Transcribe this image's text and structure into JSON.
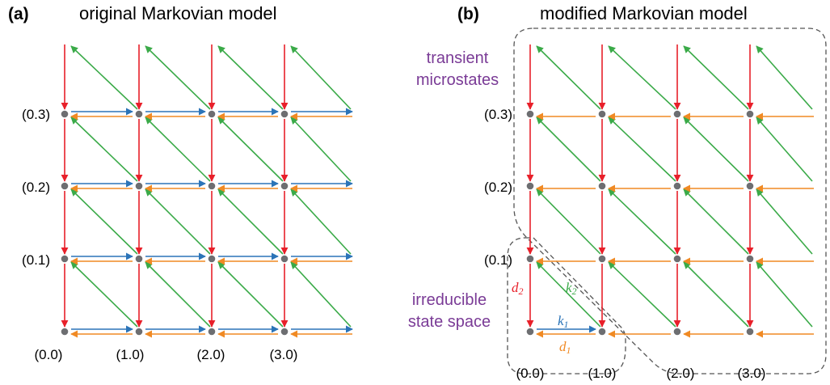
{
  "panels": {
    "a": {
      "label": "(a)",
      "title": "original Markovian model",
      "x_coords": [
        "(0.0)",
        "(1.0)",
        "(2.0)",
        "(3.0)"
      ],
      "y_coords": [
        "(0.1)",
        "(0.2)",
        "(0.3)"
      ]
    },
    "b": {
      "label": "(b)",
      "title": "modified Markovian model",
      "x_coords": [
        "(0.0)",
        "(1.0)",
        "(2.0)",
        "(3.0)"
      ],
      "y_coords": [
        "(0.1)",
        "(0.2)",
        "(0.3)"
      ],
      "region_transient_line1": "transient",
      "region_transient_line2": "microstates",
      "region_irreducible_line1": "irreducible",
      "region_irreducible_line2": "state space",
      "rate_k1": "k",
      "rate_k1_sub": "1",
      "rate_k2": "k",
      "rate_k2_sub": "2",
      "rate_d1": "d",
      "rate_d1_sub": "1",
      "rate_d2": "d",
      "rate_d2_sub": "2"
    }
  },
  "colors": {
    "red_arrow": "#e8202a",
    "green_arrow": "#3aaa48",
    "blue_arrow": "#2b74b8",
    "orange_arrow": "#f08a24",
    "node": "#6d6e71",
    "region_text": "#7a3b96",
    "dashed_border": "#555555"
  }
}
